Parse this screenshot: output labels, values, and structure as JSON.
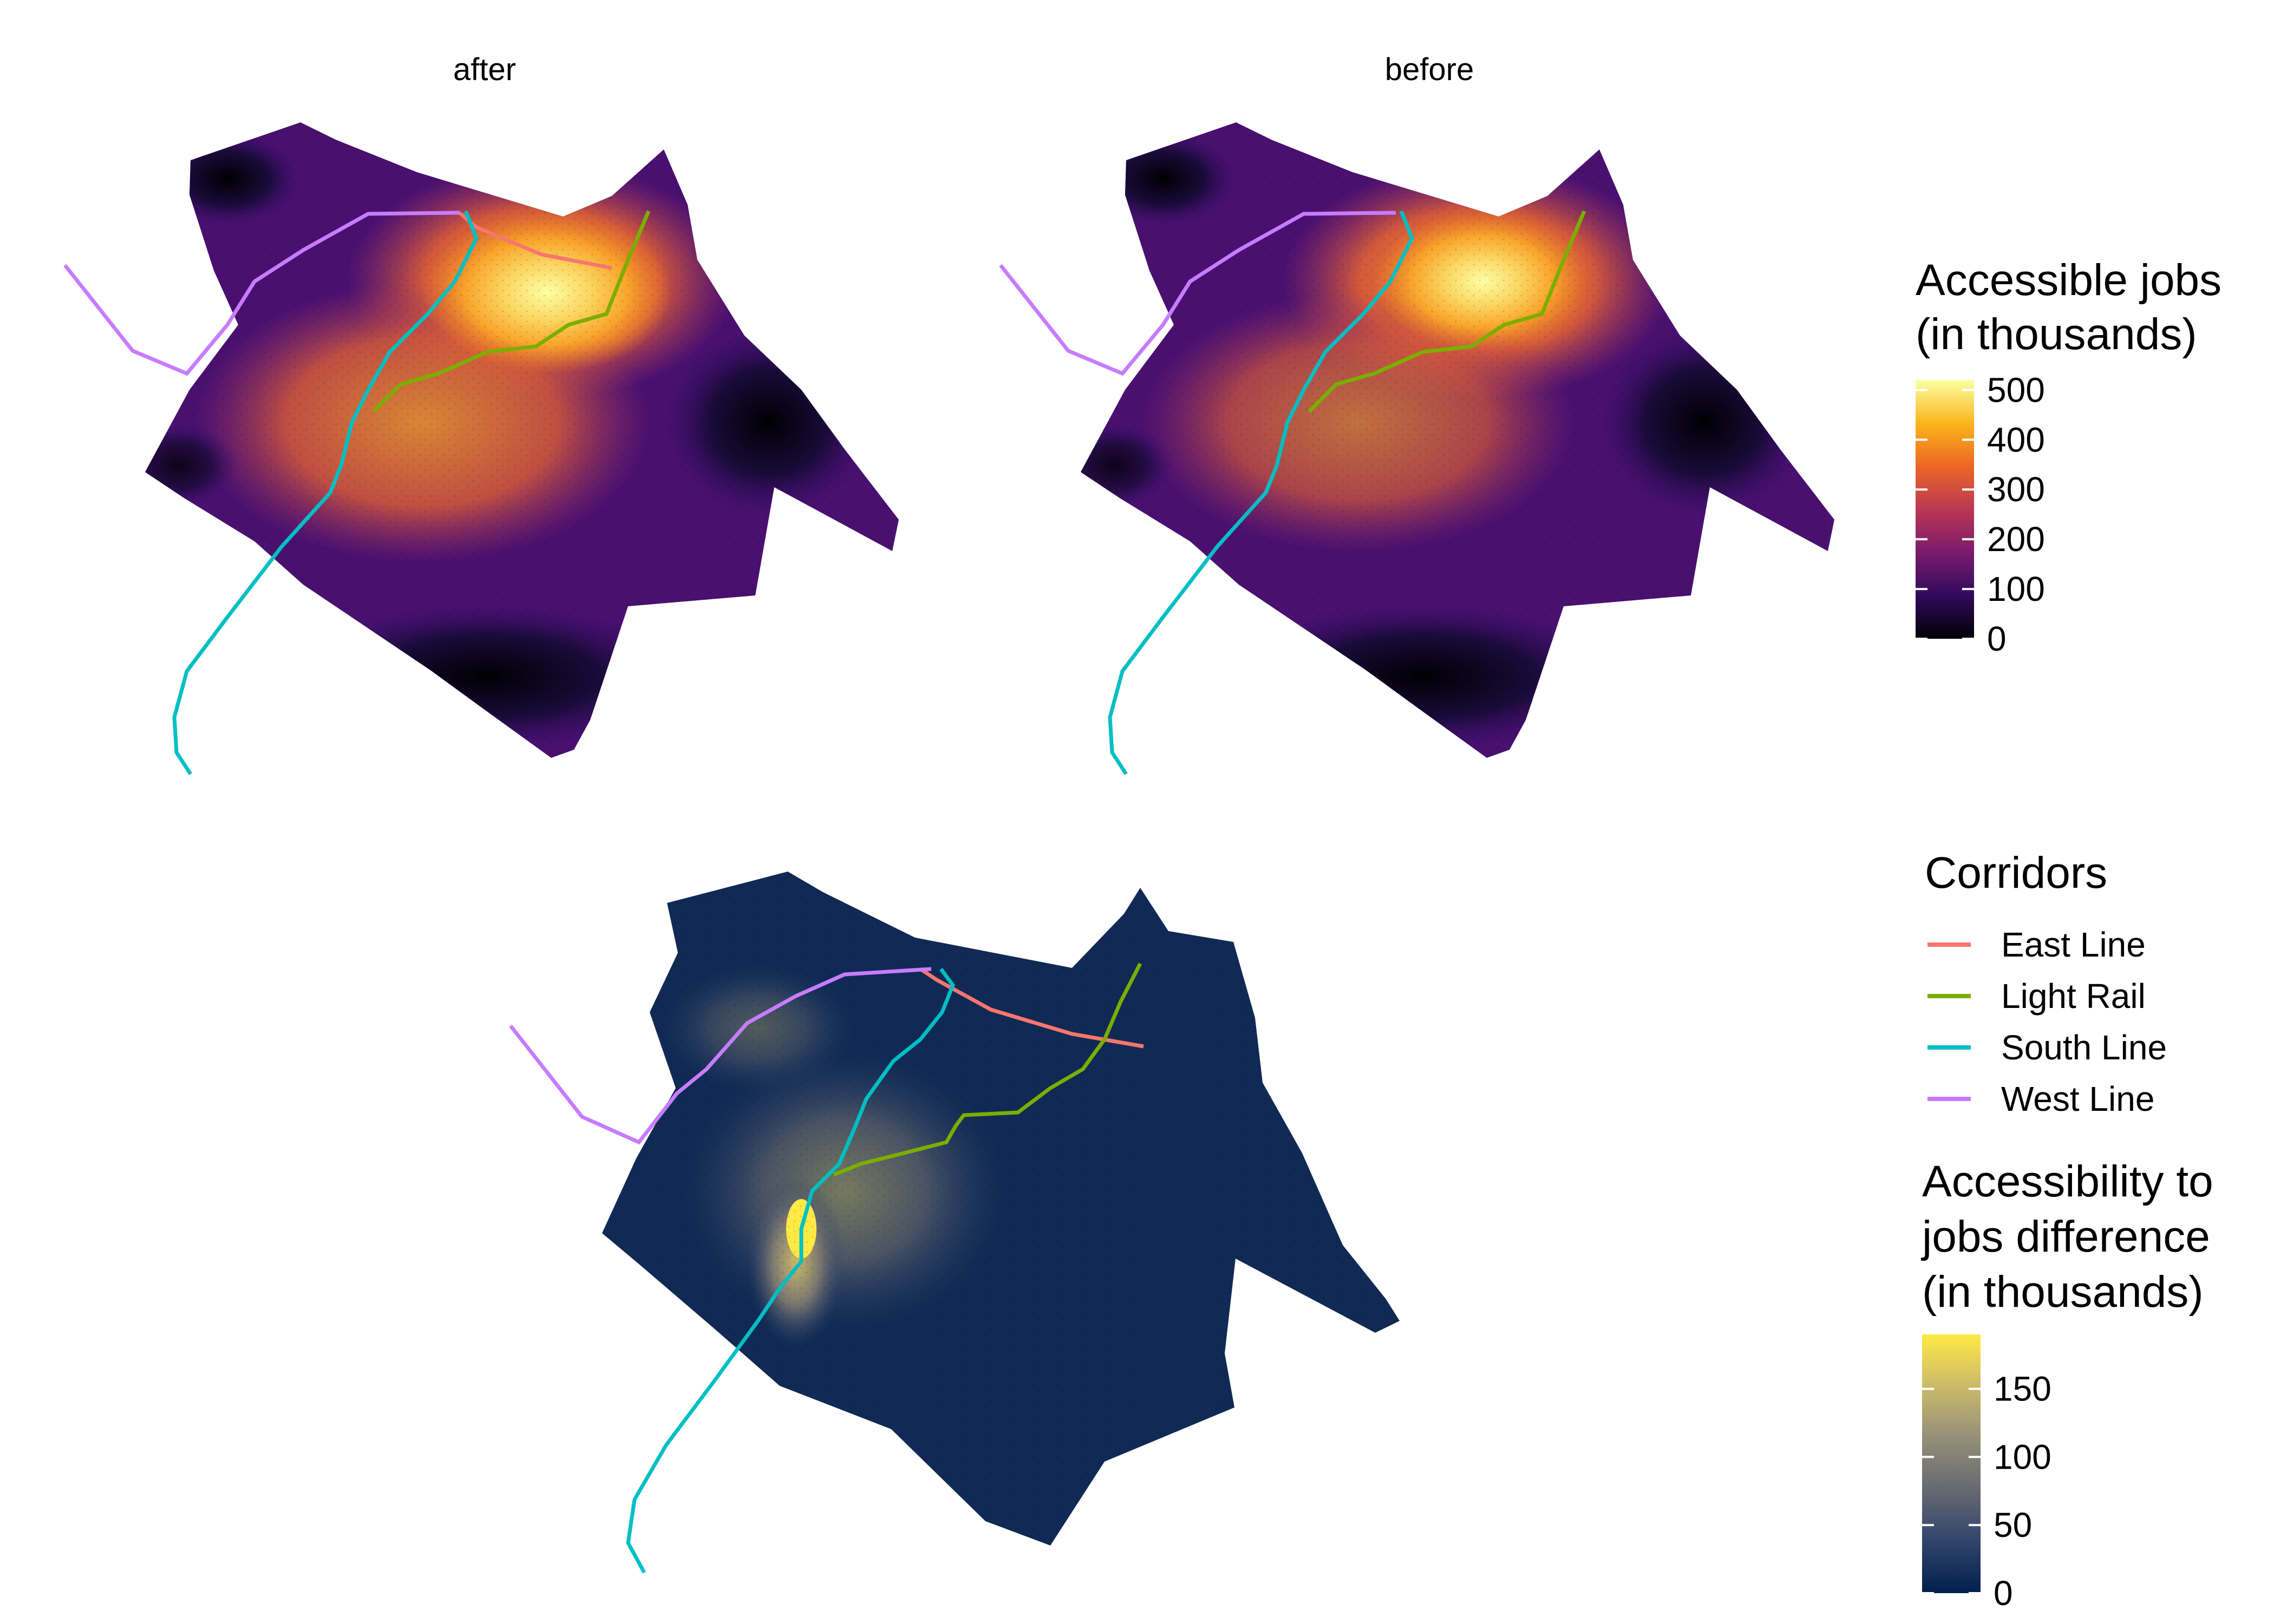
{
  "panels": {
    "after": {
      "title": "after"
    },
    "before": {
      "title": "before"
    }
  },
  "legend_jobs": {
    "title_line1": "Accessible jobs",
    "title_line2": "(in thousands)",
    "ticks": [
      "500",
      "400",
      "300",
      "200",
      "100",
      "0"
    ],
    "range": [
      0,
      520
    ],
    "palette": "inferno",
    "colors": [
      "#000004",
      "#320a5e",
      "#781b6c",
      "#bb3754",
      "#ec6824",
      "#fbb41a",
      "#fcffa4"
    ]
  },
  "legend_corridors": {
    "title": "Corridors",
    "items": [
      {
        "label": "East Line",
        "color": "#f8766d"
      },
      {
        "label": "Light Rail",
        "color": "#7cae00"
      },
      {
        "label": "South Line",
        "color": "#00bfc4"
      },
      {
        "label": "West Line",
        "color": "#c77cff"
      }
    ]
  },
  "legend_difference": {
    "title_line1": "Accessibility to",
    "title_line2": "jobs difference",
    "title_line3": "(in thousands)",
    "ticks": [
      "150",
      "100",
      "50",
      "0"
    ],
    "range": [
      0,
      190
    ],
    "palette": "cividis",
    "colors": [
      "#00204c",
      "#31446b",
      "#666970",
      "#958f78",
      "#cbba69",
      "#ffe945"
    ]
  }
}
